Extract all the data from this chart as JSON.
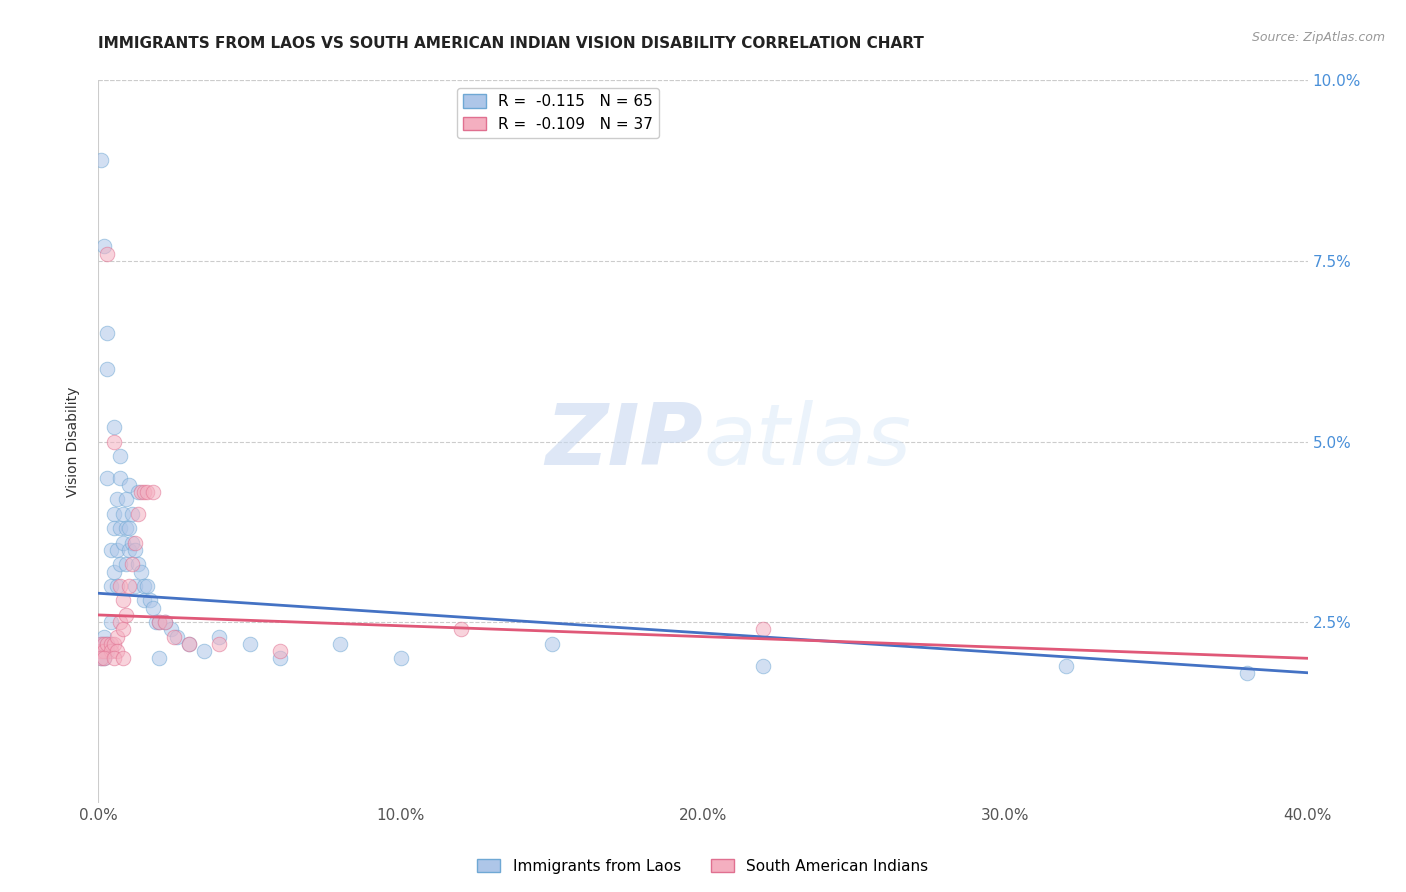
{
  "title": "IMMIGRANTS FROM LAOS VS SOUTH AMERICAN INDIAN VISION DISABILITY CORRELATION CHART",
  "source": "Source: ZipAtlas.com",
  "ylabel": "Vision Disability",
  "xlim": [
    0.0,
    0.4
  ],
  "ylim": [
    0.0,
    0.1
  ],
  "xticks": [
    0.0,
    0.1,
    0.2,
    0.3,
    0.4
  ],
  "yticks": [
    0.0,
    0.025,
    0.05,
    0.075,
    0.1
  ],
  "yticklabels_right": [
    "",
    "2.5%",
    "5.0%",
    "7.5%",
    "10.0%"
  ],
  "watermark_zip": "ZIP",
  "watermark_atlas": "atlas",
  "legend_label1": "R =  -0.115   N = 65",
  "legend_label2": "R =  -0.109   N = 37",
  "bottom_label1": "Immigrants from Laos",
  "bottom_label2": "South American Indians",
  "series1_color": "#aec6e8",
  "series2_color": "#f4afc0",
  "series1_edge": "#6fa8d4",
  "series2_edge": "#e07090",
  "trendline1_color": "#4472c4",
  "trendline2_color": "#e05878",
  "grid_color": "#cccccc",
  "background_color": "#ffffff",
  "trendline1_x0": 0.0,
  "trendline1_y0": 0.029,
  "trendline1_x1": 0.4,
  "trendline1_y1": 0.018,
  "trendline2_x0": 0.0,
  "trendline2_y0": 0.026,
  "trendline2_x1": 0.4,
  "trendline2_y1": 0.02,
  "scatter1_x": [
    0.001,
    0.001,
    0.001,
    0.002,
    0.002,
    0.002,
    0.002,
    0.003,
    0.003,
    0.003,
    0.003,
    0.004,
    0.004,
    0.004,
    0.005,
    0.005,
    0.005,
    0.006,
    0.006,
    0.006,
    0.007,
    0.007,
    0.007,
    0.008,
    0.008,
    0.009,
    0.009,
    0.009,
    0.01,
    0.01,
    0.011,
    0.011,
    0.012,
    0.012,
    0.013,
    0.014,
    0.015,
    0.015,
    0.016,
    0.017,
    0.018,
    0.019,
    0.02,
    0.022,
    0.024,
    0.026,
    0.03,
    0.035,
    0.04,
    0.05,
    0.06,
    0.08,
    0.1,
    0.15,
    0.22,
    0.32,
    0.38,
    0.001,
    0.002,
    0.003,
    0.005,
    0.007,
    0.01,
    0.013,
    0.02
  ],
  "scatter1_y": [
    0.022,
    0.021,
    0.02,
    0.022,
    0.023,
    0.021,
    0.02,
    0.045,
    0.06,
    0.022,
    0.021,
    0.03,
    0.035,
    0.025,
    0.04,
    0.038,
    0.032,
    0.042,
    0.035,
    0.03,
    0.038,
    0.045,
    0.033,
    0.04,
    0.036,
    0.042,
    0.038,
    0.033,
    0.038,
    0.035,
    0.04,
    0.036,
    0.035,
    0.03,
    0.033,
    0.032,
    0.03,
    0.028,
    0.03,
    0.028,
    0.027,
    0.025,
    0.025,
    0.025,
    0.024,
    0.023,
    0.022,
    0.021,
    0.023,
    0.022,
    0.02,
    0.022,
    0.02,
    0.022,
    0.019,
    0.019,
    0.018,
    0.089,
    0.077,
    0.065,
    0.052,
    0.048,
    0.044,
    0.043,
    0.02
  ],
  "scatter2_x": [
    0.001,
    0.001,
    0.002,
    0.002,
    0.003,
    0.003,
    0.004,
    0.004,
    0.005,
    0.005,
    0.006,
    0.006,
    0.007,
    0.007,
    0.008,
    0.008,
    0.009,
    0.01,
    0.011,
    0.012,
    0.013,
    0.014,
    0.015,
    0.016,
    0.018,
    0.02,
    0.022,
    0.025,
    0.03,
    0.04,
    0.06,
    0.12,
    0.22,
    0.001,
    0.002,
    0.005,
    0.008
  ],
  "scatter2_y": [
    0.022,
    0.021,
    0.022,
    0.021,
    0.076,
    0.022,
    0.022,
    0.021,
    0.05,
    0.022,
    0.023,
    0.021,
    0.03,
    0.025,
    0.028,
    0.024,
    0.026,
    0.03,
    0.033,
    0.036,
    0.04,
    0.043,
    0.043,
    0.043,
    0.043,
    0.025,
    0.025,
    0.023,
    0.022,
    0.022,
    0.021,
    0.024,
    0.024,
    0.02,
    0.02,
    0.02,
    0.02
  ],
  "marker_size": 110,
  "marker_alpha": 0.55,
  "title_fontsize": 11,
  "label_fontsize": 10,
  "tick_fontsize": 11,
  "legend_fontsize": 11,
  "source_fontsize": 9
}
